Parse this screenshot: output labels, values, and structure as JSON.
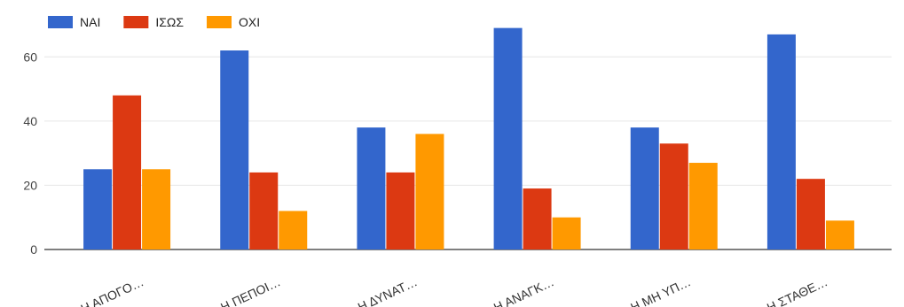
{
  "chart_data": {
    "type": "bar",
    "categories": [
      "Η ΑΠΟΓΟ…",
      "Η ΠΕΠΟΙ…",
      "Η ΔΥΝΑΤ…",
      "Η ΑΝΑΓΚ…",
      "Η ΜΗ ΥΠ…",
      "Η ΣΤΑΘΕ…"
    ],
    "series": [
      {
        "name": "ΝΑΙ",
        "color": "#3366cc",
        "values": [
          25,
          62,
          38,
          69,
          38,
          67
        ]
      },
      {
        "name": "ΙΣΩΣ",
        "color": "#dc3912",
        "values": [
          48,
          24,
          24,
          19,
          33,
          22
        ]
      },
      {
        "name": "ΟΧΙ",
        "color": "#ff9900",
        "values": [
          25,
          12,
          36,
          10,
          27,
          9
        ]
      }
    ],
    "y_ticks": [
      "0",
      "20",
      "40",
      "60"
    ],
    "ylim": [
      0,
      70
    ],
    "grid": true,
    "legend_position": "top-left"
  }
}
